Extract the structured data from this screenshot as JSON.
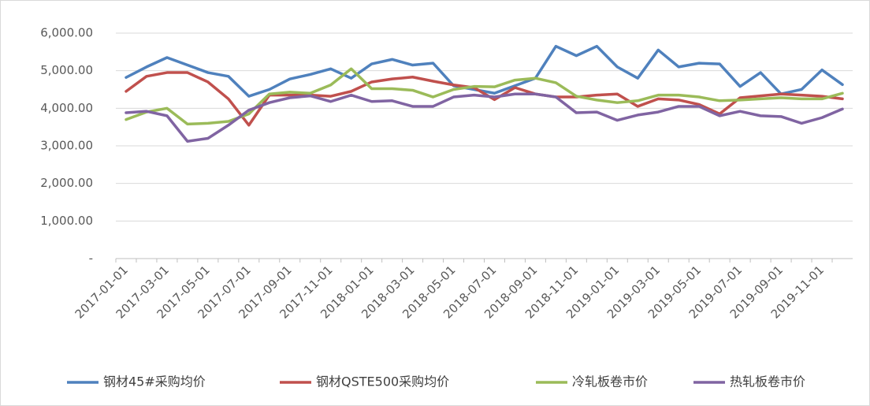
{
  "chart_data": {
    "type": "line",
    "categories": [
      "2017-01-01",
      null,
      "2017-03-01",
      null,
      "2017-05-01",
      null,
      "2017-07-01",
      null,
      "2017-09-01",
      null,
      "2017-11-01",
      null,
      "2018-01-01",
      null,
      "2018-03-01",
      null,
      "2018-05-01",
      null,
      "2018-07-01",
      null,
      "2018-09-01",
      null,
      "2018-11-01",
      null,
      "2019-01-01",
      null,
      "2019-03-01",
      null,
      "2019-05-01",
      null,
      "2019-07-01",
      null,
      "2019-09-01",
      null,
      "2019-11-01",
      null
    ],
    "series": [
      {
        "name": "钢材45#采购均价",
        "color": "#4f81bd",
        "values": [
          4820,
          5100,
          5350,
          5150,
          4950,
          4850,
          4320,
          4500,
          4780,
          4900,
          5050,
          4800,
          5180,
          5300,
          5150,
          5200,
          4600,
          4500,
          4400,
          4600,
          4800,
          5650,
          5400,
          5650,
          5100,
          4800,
          5550,
          5100,
          5200,
          5180,
          4580,
          4950,
          4380,
          4500,
          5020,
          4630
        ]
      },
      {
        "name": "钢材QSTE500采购均价",
        "color": "#c0504d",
        "values": [
          4450,
          4850,
          4950,
          4950,
          4700,
          4250,
          3550,
          4350,
          4350,
          4350,
          4320,
          4450,
          4700,
          4780,
          4830,
          4720,
          4620,
          4550,
          4230,
          4550,
          4380,
          4300,
          4300,
          4350,
          4380,
          4050,
          4250,
          4220,
          4100,
          3850,
          4280,
          4330,
          4380,
          4350,
          4320,
          4250
        ]
      },
      {
        "name": "冷轧板卷市价",
        "color": "#9bbb59",
        "values": [
          3700,
          3900,
          4000,
          3580,
          3600,
          3650,
          3850,
          4380,
          4430,
          4400,
          4620,
          5050,
          4520,
          4520,
          4480,
          4300,
          4500,
          4580,
          4570,
          4750,
          4800,
          4680,
          4320,
          4220,
          4150,
          4200,
          4350,
          4350,
          4300,
          4200,
          4220,
          4250,
          4280,
          4250,
          4250,
          4400
        ]
      },
      {
        "name": "热轧板卷市价",
        "color": "#8064a2",
        "values": [
          3880,
          3920,
          3800,
          3120,
          3200,
          3550,
          3950,
          4150,
          4280,
          4330,
          4180,
          4350,
          4180,
          4200,
          4050,
          4050,
          4300,
          4350,
          4300,
          4380,
          4380,
          4300,
          3880,
          3900,
          3680,
          3820,
          3900,
          4050,
          4050,
          3800,
          3920,
          3800,
          3780,
          3600,
          3750,
          3980
        ]
      }
    ],
    "ylim": [
      0,
      6000
    ],
    "yticks": [
      {
        "value": 0,
        "label": "-"
      },
      {
        "value": 1000,
        "label": "1,000.00"
      },
      {
        "value": 2000,
        "label": "2,000.00"
      },
      {
        "value": 3000,
        "label": "3,000.00"
      },
      {
        "value": 4000,
        "label": "4,000.00"
      },
      {
        "value": 5000,
        "label": "5,000.00"
      },
      {
        "value": 6000,
        "label": "6,000.00"
      }
    ],
    "grid": true,
    "legend": "bottom"
  }
}
